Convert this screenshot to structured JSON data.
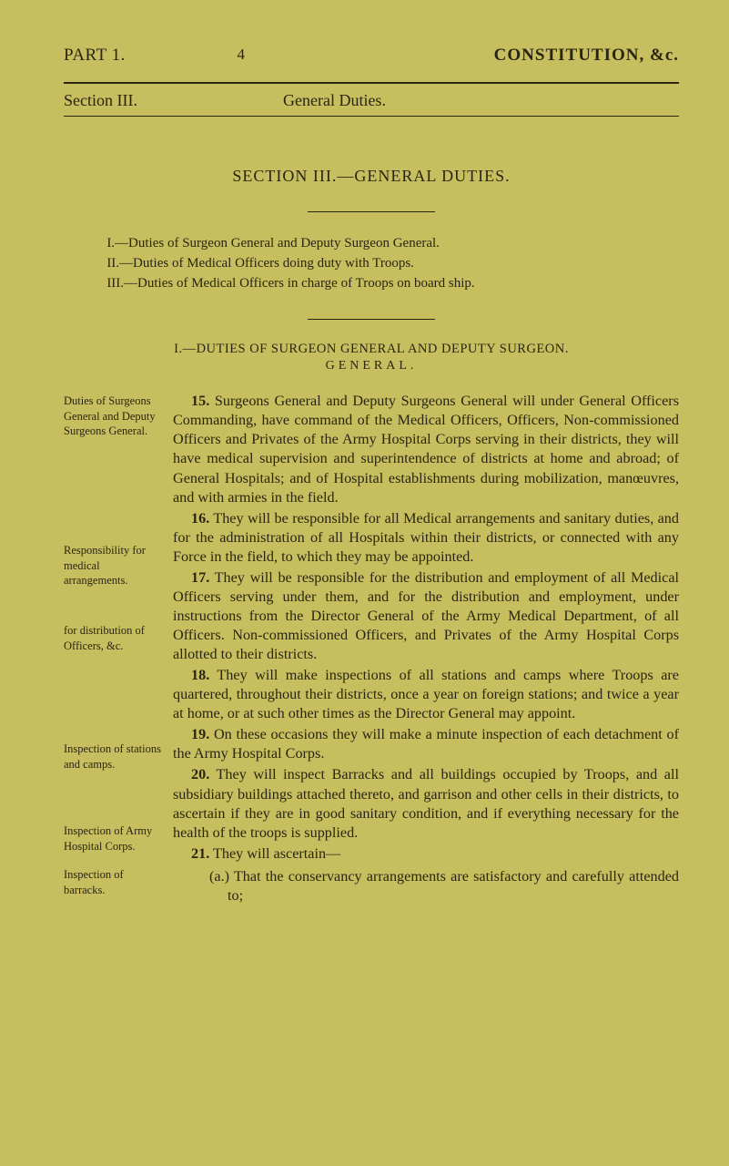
{
  "header": {
    "part": "PART 1.",
    "pageNum": "4",
    "constitution": "CONSTITUTION, &c."
  },
  "sectionLine": {
    "left": "Section III.",
    "right": "General Duties."
  },
  "sectionTitle": "SECTION III.—GENERAL DUTIES.",
  "toc": {
    "i": "I.—Duties of Surgeon General and Deputy Surgeon General.",
    "ii": "II.—Duties of Medical Officers doing duty with Troops.",
    "iii": "III.—Duties of Medical Officers in charge of Troops on board ship."
  },
  "subhead": "I.—DUTIES OF SURGEON GENERAL AND DEPUTY SURGEON.",
  "subhead2": "GENERAL.",
  "marginNotes": {
    "n1": "Duties of Surgeons General and Deputy Sur­geons General.",
    "n2": "Responsibility for medical arrangements.",
    "n3": "for distribu­tion of Officers, &c.",
    "n4": "Inspection of stations and camps.",
    "n5": "Inspection of Army Hospi­tal Corps.",
    "n6": "Inspection of barracks."
  },
  "paras": {
    "p15": "15. Surgeons General and Deputy Surgeons General will under General Officers Commanding, have command of the Medical Officers, Officers, Non-commissioned Officers and Privates of the Army Hospital Corps serving in their districts, they will have medical supervision and superintendence of districts at home and abroad; of General Hospitals; and of Hospital establishments during mobilization, manœuvres, and with armies in the field.",
    "p16": "16. They will be responsible for all Medical arrangements and sanitary duties, and for the administration of all Hospitals within their districts, or connected with any Force in the field, to which they may be appointed.",
    "p17": "17. They will be responsible for the distribution and employ­ment of all Medical Officers serving under them, and for the distribution and employment, under instructions from the Director General of the Army Medical Department, of all Officers. Non-commissioned Officers, and Privates of the Army Hospital Corps allotted to their districts.",
    "p18": "18. They will make inspections of all stations and camps where Troops are quartered, throughout their districts, once a year on foreign stations; and twice a year at home, or at such other times as the Director General may appoint.",
    "p19": "19. On these occasions they will make a minute inspection of each detachment of the Army Hospital Corps.",
    "p20": "20. They will inspect Barracks and all buildings occupied by Troops, and all subsidiary buildings attached thereto, and garrison and other cells in their districts, to ascertain if they are in good sanitary condition, and if everything necessary for the health of the troops is supplied.",
    "p21": "21. They will ascertain—",
    "p21a": "(a.) That the conservancy arrangements are satisfactory and carefully attended to;"
  }
}
